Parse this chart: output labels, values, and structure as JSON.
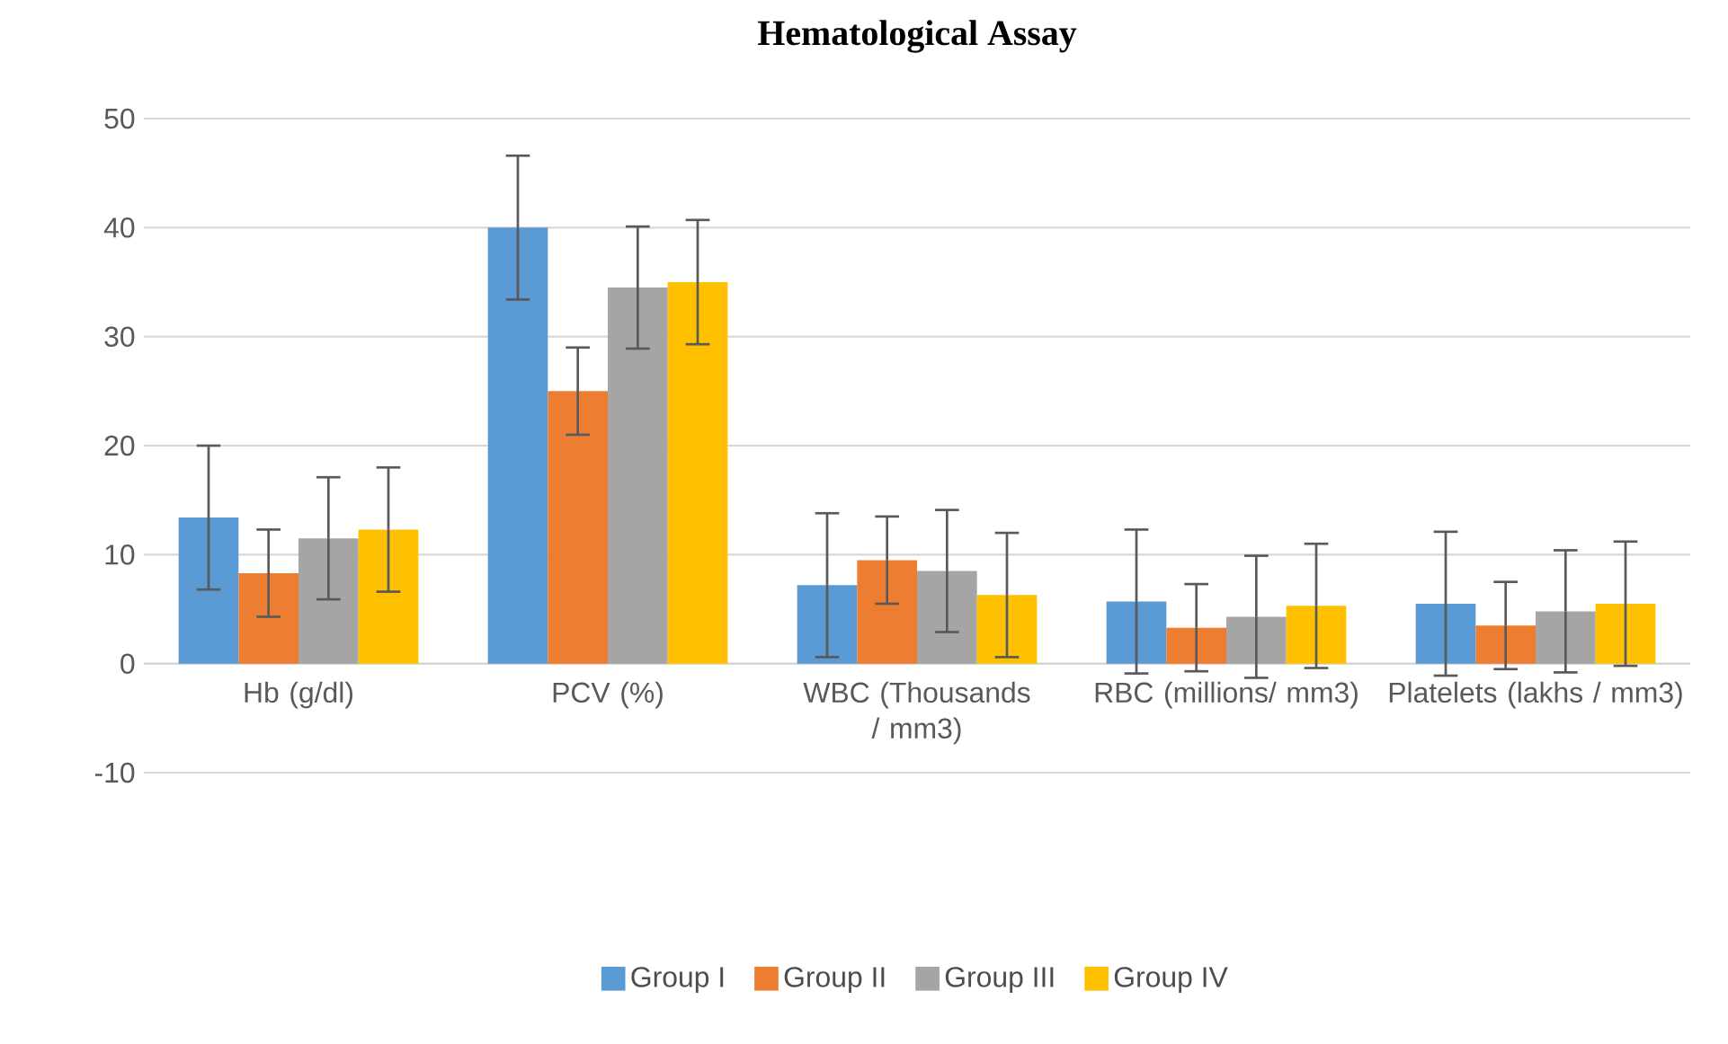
{
  "chart_data": {
    "type": "bar",
    "title": "Hematological Assay",
    "categories": [
      "Hb (g/dl)",
      "PCV (%)",
      "WBC  (Thousands / mm3)",
      "RBC (millions/ mm3)",
      "Platelets (lakhs / mm3)"
    ],
    "series": [
      {
        "name": "Group I",
        "color": "#5b9bd5",
        "values": [
          13.4,
          40,
          7.2,
          5.7,
          5.5
        ],
        "errors": [
          6.6,
          6.6,
          6.6,
          6.6,
          6.6
        ]
      },
      {
        "name": "Group II",
        "color": "#ed7d31",
        "values": [
          8.3,
          25,
          9.5,
          3.3,
          3.5
        ],
        "errors": [
          4,
          4,
          4,
          4,
          4
        ]
      },
      {
        "name": "Group III",
        "color": "#a5a5a5",
        "values": [
          11.5,
          34.5,
          8.5,
          4.3,
          4.8
        ],
        "errors": [
          5.6,
          5.6,
          5.6,
          5.6,
          5.6
        ]
      },
      {
        "name": "Group IV",
        "color": "#ffc000",
        "values": [
          12.3,
          35,
          6.3,
          5.3,
          5.5
        ],
        "errors": [
          5.7,
          5.7,
          5.7,
          5.7,
          5.7
        ]
      }
    ],
    "ylim": [
      -10,
      50
    ],
    "yticks": [
      -10,
      0,
      10,
      20,
      30,
      40,
      50
    ],
    "grid": "y",
    "legend": "bottom"
  }
}
